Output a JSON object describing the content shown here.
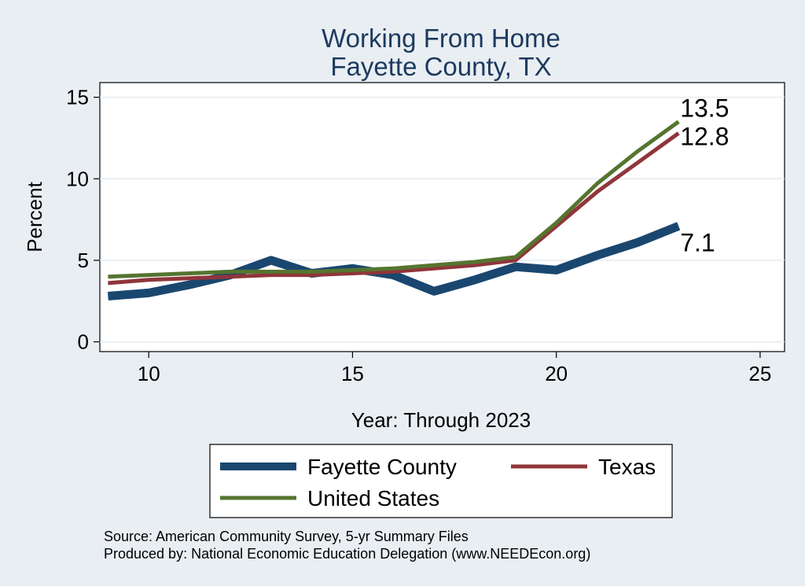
{
  "chart_data": {
    "type": "line",
    "title": [
      "Working From Home",
      "Fayette County, TX"
    ],
    "xlabel": "Year: Through 2023",
    "ylabel": "Percent",
    "xlim": [
      8.8,
      25.6
    ],
    "ylim": [
      -0.6,
      15.9
    ],
    "xticks": [
      10,
      15,
      20,
      25
    ],
    "yticks": [
      0,
      5,
      10,
      15
    ],
    "grid": true,
    "legend_position": "bottom",
    "series": [
      {
        "name": "Fayette County",
        "color": "#1a476f",
        "x": [
          9,
          10,
          11,
          12,
          13,
          14,
          15,
          16,
          17,
          18,
          19,
          20,
          21,
          22,
          23
        ],
        "values": [
          2.8,
          3.0,
          3.5,
          4.1,
          5.0,
          4.2,
          4.5,
          4.1,
          3.1,
          3.8,
          4.6,
          4.4,
          5.3,
          6.1,
          7.1
        ],
        "end_label": "7.1"
      },
      {
        "name": "Texas",
        "color": "#90353b",
        "x": [
          9,
          10,
          11,
          12,
          13,
          14,
          15,
          16,
          17,
          18,
          19,
          20,
          21,
          22,
          23
        ],
        "values": [
          3.6,
          3.8,
          3.9,
          4.0,
          4.1,
          4.1,
          4.2,
          4.3,
          4.5,
          4.7,
          5.0,
          7.1,
          9.2,
          11.0,
          12.8
        ],
        "end_label": "12.8"
      },
      {
        "name": "United States",
        "color": "#55752f",
        "x": [
          9,
          10,
          11,
          12,
          13,
          14,
          15,
          16,
          17,
          18,
          19,
          20,
          21,
          22,
          23
        ],
        "values": [
          4.0,
          4.1,
          4.2,
          4.3,
          4.3,
          4.3,
          4.4,
          4.5,
          4.7,
          4.9,
          5.2,
          7.3,
          9.7,
          11.7,
          13.5
        ],
        "end_label": "13.5"
      }
    ],
    "notes": [
      "Source: American Community Survey, 5-yr Summary Files",
      "Produced by: National Economic Education Delegation (www.NEEDEcon.org)"
    ]
  }
}
